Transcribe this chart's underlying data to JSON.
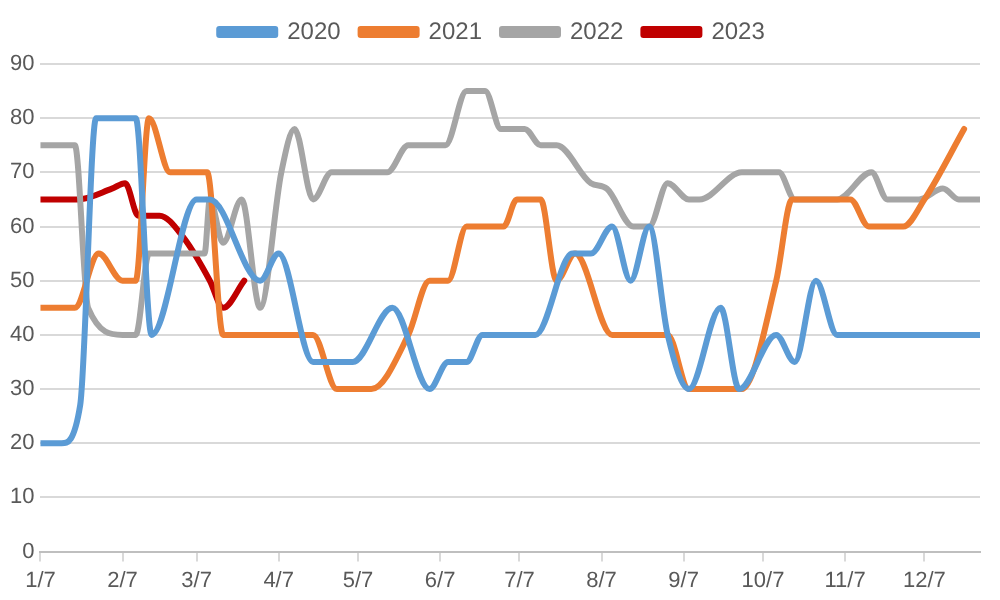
{
  "chart_data": {
    "type": "line",
    "legend": "top",
    "grid": "y",
    "marker": "none",
    "line_style": "solid",
    "xlim": [
      "--01-07",
      "--12-28"
    ],
    "xticks": [
      {
        "value": "--01-07",
        "label": "1/7"
      },
      {
        "value": "--02-07",
        "label": "2/7"
      },
      {
        "value": "--03-07",
        "label": "3/7"
      },
      {
        "value": "--04-07",
        "label": "4/7"
      },
      {
        "value": "--05-07",
        "label": "5/7"
      },
      {
        "value": "--06-07",
        "label": "6/7"
      },
      {
        "value": "--07-07",
        "label": "7/7"
      },
      {
        "value": "--08-07",
        "label": "8/7"
      },
      {
        "value": "--09-07",
        "label": "9/7"
      },
      {
        "value": "--10-07",
        "label": "10/7"
      },
      {
        "value": "--11-07",
        "label": "11/7"
      },
      {
        "value": "--12-07",
        "label": "12/7"
      }
    ],
    "ylim": [
      0,
      90
    ],
    "yticks": [
      0,
      10,
      20,
      30,
      40,
      50,
      60,
      70,
      80,
      90
    ],
    "series": [
      {
        "name": "2020",
        "color": "#5b9bd5",
        "x": [
          "--01-07",
          "--01-15",
          "--01-22",
          "--01-28",
          "--02-12",
          "--02-18",
          "--03-07",
          "--03-12",
          "--03-31",
          "--04-07",
          "--04-20",
          "--05-05",
          "--05-20",
          "--06-03",
          "--06-10",
          "--06-17",
          "--06-23",
          "--07-13",
          "--07-27",
          "--08-03",
          "--08-11",
          "--08-18",
          "--08-25",
          "--09-01",
          "--09-09",
          "--09-21",
          "--09-28",
          "--10-12",
          "--10-19",
          "--10-27",
          "--11-04",
          "--12-28"
        ],
        "values": [
          20,
          20,
          27,
          80,
          80,
          40,
          65,
          65,
          50,
          55,
          35,
          35,
          45,
          30,
          35,
          35,
          40,
          40,
          55,
          55,
          60,
          50,
          60,
          40,
          30,
          45,
          30,
          40,
          35,
          50,
          40,
          40
        ]
      },
      {
        "name": "2021",
        "color": "#ed7d31",
        "x": [
          "--01-07",
          "--01-20",
          "--01-29",
          "--02-07",
          "--02-12",
          "--02-17",
          "--02-25",
          "--03-11",
          "--03-17",
          "--04-20",
          "--04-29",
          "--05-12",
          "--05-26",
          "--06-03",
          "--06-10",
          "--06-17",
          "--07-01",
          "--07-06",
          "--07-15",
          "--07-21",
          "--07-28",
          "--08-11",
          "--09-01",
          "--09-09",
          "--09-29",
          "--10-12",
          "--10-18",
          "--11-09",
          "--11-16",
          "--11-29",
          "--12-07",
          "--12-22"
        ],
        "values": [
          45,
          45,
          55,
          50,
          50,
          80,
          70,
          70,
          40,
          40,
          30,
          30,
          40,
          50,
          50,
          60,
          60,
          65,
          65,
          50,
          55,
          40,
          40,
          30,
          30,
          50,
          65,
          65,
          60,
          60,
          65,
          78
        ]
      },
      {
        "name": "2022",
        "color": "#a5a5a5",
        "x": [
          "--01-07",
          "--01-20",
          "--01-25",
          "--02-07",
          "--02-12",
          "--02-17",
          "--03-10",
          "--03-12",
          "--03-17",
          "--03-24",
          "--03-31",
          "--04-08",
          "--04-13",
          "--04-20",
          "--04-27",
          "--05-18",
          "--05-26",
          "--06-09",
          "--06-17",
          "--06-24",
          "--06-30",
          "--07-09",
          "--07-15",
          "--07-21",
          "--08-03",
          "--08-09",
          "--08-19",
          "--08-25",
          "--09-01",
          "--09-09",
          "--09-13",
          "--09-29",
          "--10-13",
          "--10-19",
          "--11-04",
          "--11-17",
          "--11-23",
          "--12-05",
          "--12-14",
          "--12-20",
          "--12-28"
        ],
        "values": [
          75,
          75,
          45,
          40,
          40,
          55,
          55,
          65,
          57,
          65,
          45,
          70,
          78,
          65,
          70,
          70,
          75,
          75,
          85,
          85,
          78,
          78,
          75,
          75,
          68,
          67,
          60,
          60,
          68,
          65,
          65,
          70,
          70,
          65,
          65,
          70,
          65,
          65,
          67,
          65,
          65
        ]
      },
      {
        "name": "2023",
        "color": "#c00000",
        "x": [
          "--01-07",
          "--01-21",
          "--02-03",
          "--02-08",
          "--02-13",
          "--02-21",
          "--03-02",
          "--03-12",
          "--03-17",
          "--03-25"
        ],
        "values": [
          65,
          65,
          67,
          68,
          62,
          62,
          58,
          50,
          45,
          50
        ]
      }
    ]
  }
}
